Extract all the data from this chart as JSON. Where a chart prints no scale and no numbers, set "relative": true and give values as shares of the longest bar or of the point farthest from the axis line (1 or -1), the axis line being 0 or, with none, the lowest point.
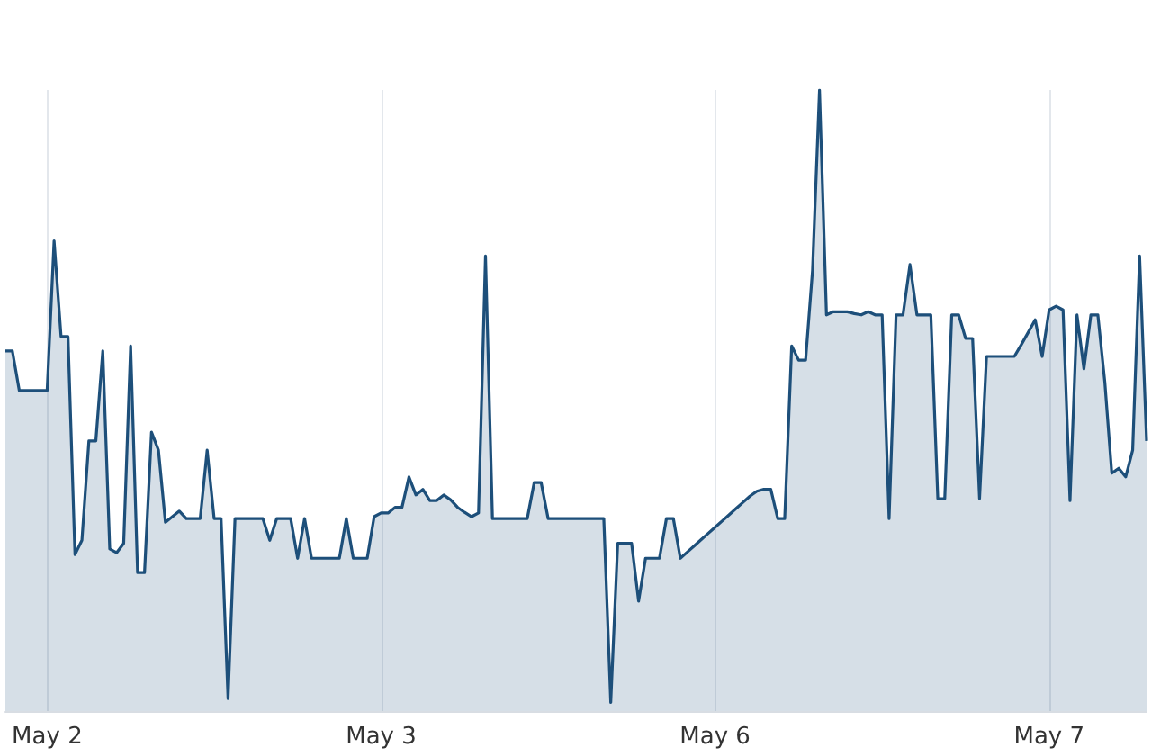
{
  "chart_data": {
    "type": "area",
    "relative": true,
    "grid": "x",
    "marker": "none",
    "line_style": "solid",
    "categories": [
      null,
      null,
      null,
      null,
      null,
      null,
      "May 2",
      null,
      null,
      null,
      null,
      null,
      null,
      null,
      null,
      null,
      null,
      null,
      null,
      null,
      null,
      null,
      null,
      null,
      null,
      null,
      null,
      null,
      null,
      null,
      null,
      null,
      null,
      null,
      null,
      null,
      null,
      null,
      null,
      null,
      null,
      null,
      null,
      null,
      null,
      null,
      null,
      null,
      null,
      null,
      null,
      null,
      null,
      null,
      "May 3",
      null,
      null,
      null,
      null,
      null,
      null,
      null,
      null,
      null,
      null,
      null,
      null,
      null,
      null,
      null,
      null,
      null,
      null,
      null,
      null,
      null,
      null,
      null,
      null,
      null,
      null,
      null,
      null,
      null,
      null,
      null,
      null,
      null,
      null,
      null,
      null,
      null,
      null,
      null,
      null,
      null,
      null,
      null,
      null,
      null,
      null,
      null,
      "May 6",
      null,
      null,
      null,
      null,
      null,
      null,
      null,
      null,
      null,
      null,
      null,
      null,
      null,
      null,
      null,
      null,
      null,
      null,
      null,
      null,
      null,
      null,
      null,
      null,
      null,
      null,
      null,
      null,
      null,
      null,
      null,
      null,
      null,
      null,
      null,
      null,
      null,
      null,
      null,
      null,
      null,
      null,
      null,
      null,
      null,
      null,
      null,
      "May 7",
      null,
      null,
      null,
      null,
      null,
      null,
      null,
      null,
      null,
      null,
      null,
      null,
      null,
      null
    ],
    "series": [
      {
        "color": "#1d4f7a",
        "values": [
          0.58,
          0.58,
          0.516,
          0.516,
          0.516,
          0.516,
          0.516,
          0.757,
          0.603,
          0.603,
          0.252,
          0.275,
          0.435,
          0.435,
          0.58,
          0.261,
          0.255,
          0.27,
          0.588,
          0.223,
          0.223,
          0.449,
          0.42,
          0.304,
          0.313,
          0.322,
          0.31,
          0.31,
          0.31,
          0.42,
          0.31,
          0.31,
          0.02,
          0.31,
          0.31,
          0.31,
          0.31,
          0.31,
          0.275,
          0.31,
          0.31,
          0.31,
          0.246,
          0.31,
          0.246,
          0.246,
          0.246,
          0.246,
          0.246,
          0.31,
          0.246,
          0.246,
          0.246,
          0.313,
          0.319,
          0.319,
          0.328,
          0.328,
          0.377,
          0.348,
          0.357,
          0.339,
          0.339,
          0.348,
          0.34,
          0.328,
          0.32,
          0.313,
          0.319,
          0.733,
          0.31,
          0.31,
          0.31,
          0.31,
          0.31,
          0.31,
          0.368,
          0.368,
          0.31,
          0.31,
          0.31,
          0.31,
          0.31,
          0.31,
          0.31,
          0.31,
          0.31,
          0.014,
          0.27,
          0.27,
          0.27,
          0.177,
          0.246,
          0.246,
          0.246,
          0.31,
          0.31,
          0.246,
          0.256,
          0.266,
          0.276,
          0.286,
          0.296,
          0.306,
          0.316,
          0.326,
          0.336,
          0.346,
          0.354,
          0.357,
          0.357,
          0.31,
          0.31,
          0.588,
          0.565,
          0.565,
          0.71,
          1,
          0.638,
          0.643,
          0.643,
          0.643,
          0.64,
          0.638,
          0.643,
          0.638,
          0.638,
          0.31,
          0.638,
          0.638,
          0.719,
          0.638,
          0.638,
          0.638,
          0.342,
          0.342,
          0.638,
          0.638,
          0.6,
          0.6,
          0.342,
          0.571,
          0.571,
          0.571,
          0.571,
          0.571,
          0.59,
          0.61,
          0.63,
          0.571,
          0.646,
          0.652,
          0.646,
          0.339,
          0.638,
          0.551,
          0.638,
          0.638,
          0.53,
          0.383,
          0.391,
          0.377,
          0.42,
          0.733,
          0.435
        ]
      }
    ]
  }
}
